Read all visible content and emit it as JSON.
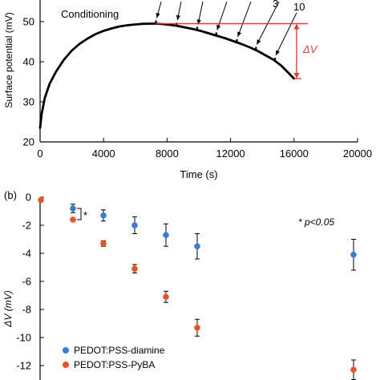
{
  "chart_data": [
    {
      "type": "line",
      "panel": "a",
      "xlabel": "Time (s)",
      "ylabel": "Surface potential (mV)",
      "xlim": [
        0,
        20000
      ],
      "ylim": [
        20,
        55
      ],
      "xticks": [
        "0",
        "4000",
        "8000",
        "12000",
        "16000",
        "20000"
      ],
      "yticks": [
        "20",
        "30",
        "40",
        "50"
      ],
      "annotations": {
        "conditioning": "Conditioning",
        "label_3": "3",
        "label_10": "10",
        "delta_v": "ΔV"
      },
      "reference_level": 49.5,
      "accent_color": "#e53935",
      "curve": {
        "x": [
          0,
          100,
          300,
          600,
          1000,
          1500,
          2000,
          2500,
          3000,
          3500,
          4000,
          4500,
          5000,
          5500,
          6000,
          6500,
          7000,
          7300,
          7700,
          8200,
          8700,
          9200,
          9700,
          10200,
          10700,
          11200,
          11700,
          12200,
          12700,
          13200,
          13700,
          14200,
          14700,
          15200,
          15700,
          16000
        ],
        "y": [
          23.5,
          27,
          31,
          34.5,
          37.5,
          40.5,
          42.8,
          44.5,
          45.8,
          46.9,
          47.7,
          48.3,
          48.8,
          49.1,
          49.3,
          49.45,
          49.5,
          49.5,
          49.4,
          49.2,
          48.9,
          48.5,
          48.1,
          47.6,
          47.0,
          46.4,
          45.8,
          45.1,
          44.4,
          43.6,
          42.7,
          41.6,
          40.5,
          39.0,
          37.0,
          35.8
        ]
      },
      "stimulus_times": [
        7300,
        8600,
        9900,
        11100,
        12400,
        13600,
        14800
      ],
      "stimulus_spike": 0.8
    },
    {
      "type": "scatter",
      "panel": "b",
      "xlabel": "",
      "ylabel": "ΔV (mV)",
      "ylim": [
        -13,
        0
      ],
      "yticks": [
        "0",
        "-2",
        "-4",
        "-6",
        "-8",
        "-10",
        "-12"
      ],
      "significance_star": "*",
      "annotation": "* p<0.05",
      "series": [
        {
          "name": "PEDOT:PSS-diamine",
          "color": "#3a7bd5",
          "x": [
            1,
            2,
            3,
            4,
            5,
            10
          ],
          "values": [
            -0.8,
            -1.3,
            -2.0,
            -2.7,
            -3.5,
            -4.1
          ],
          "err": [
            0.3,
            0.4,
            0.6,
            0.8,
            0.9,
            1.1
          ]
        },
        {
          "name": "PEDOT:PSS-PyBA",
          "color": "#e8542a",
          "x": [
            0,
            1,
            2,
            3,
            4,
            5,
            10
          ],
          "values": [
            -0.2,
            -1.6,
            -3.3,
            -5.1,
            -7.1,
            -9.3,
            -12.3
          ],
          "err": [
            0,
            0,
            0.2,
            0.3,
            0.4,
            0.6,
            0.7
          ]
        }
      ]
    }
  ]
}
